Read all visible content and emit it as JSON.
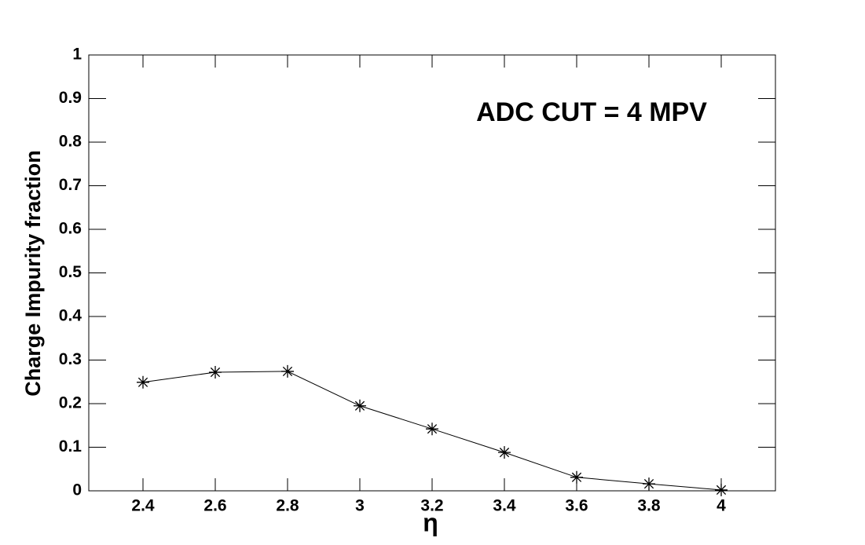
{
  "chart_data": {
    "type": "line",
    "annotation": "ADC CUT = 4 MPV",
    "x_label": "η",
    "y_label": "Charge Impurity fraction",
    "x": [
      2.4,
      2.6,
      2.8,
      3,
      3.2,
      3.4,
      3.6,
      3.8,
      4
    ],
    "series": [
      {
        "color": "#000000",
        "values": [
          0.249,
          0.272,
          0.274,
          0.195,
          0.142,
          0.088,
          0.031,
          0.016,
          0.002
        ]
      }
    ],
    "xlim": [
      2.25,
      4.15
    ],
    "ylim": [
      0,
      1
    ],
    "xticks": [
      2.4,
      2.6,
      2.8,
      3,
      3.2,
      3.4,
      3.6,
      3.8,
      4
    ],
    "yticks": [
      0,
      0.1,
      0.2,
      0.3,
      0.4,
      0.5,
      0.6,
      0.7,
      0.8,
      0.9,
      1
    ],
    "marker": "asterisk"
  }
}
